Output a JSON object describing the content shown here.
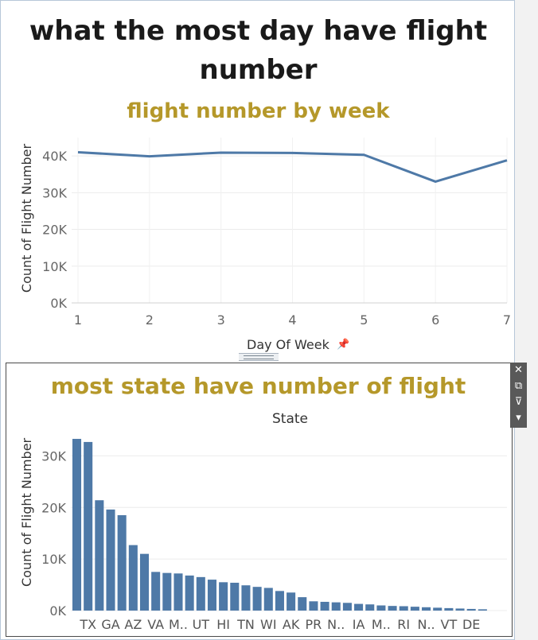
{
  "dashboard": {
    "title_line1": "what the most day have flight",
    "title_line2": "number"
  },
  "line_chart_title": "flight number by week",
  "bar_chart_title": "most state have number of flight",
  "bar_chart_column_header": "State",
  "toolbar": {
    "close_icon": "✕",
    "popout_icon": "⧉",
    "filter_icon": "⊽",
    "more_icon": "▾"
  },
  "chart_data": [
    {
      "type": "line",
      "title": "flight number by week",
      "xlabel": "Day Of Week",
      "ylabel": "Count of Flight Number",
      "x": [
        1,
        2,
        3,
        4,
        5,
        6,
        7
      ],
      "x_tick_labels": [
        "1",
        "2",
        "3",
        "4",
        "5",
        "6",
        "7"
      ],
      "series": [
        {
          "values": [
            41000,
            39900,
            40900,
            40800,
            40300,
            33000,
            38800
          ]
        }
      ],
      "ylim": [
        0,
        45000
      ],
      "y_ticks": [
        0,
        10000,
        20000,
        30000,
        40000
      ],
      "y_tick_labels": [
        "0K",
        "10K",
        "20K",
        "30K",
        "40K"
      ],
      "grid": true,
      "color": "#4e79a7"
    },
    {
      "type": "bar",
      "title": "most state have number of flight",
      "xlabel": "State",
      "ylabel": "Count of Flight Number",
      "categories": [
        "",
        "TX",
        "",
        "GA",
        "",
        "AZ",
        "",
        "VA",
        "",
        "M..",
        "",
        "UT",
        "",
        "HI",
        "",
        "TN",
        "",
        "WI",
        "",
        "AK",
        "",
        "PR",
        "",
        "N..",
        "",
        "IA",
        "",
        "M..",
        "",
        "RI",
        "",
        "N..",
        "",
        "VT",
        "",
        "DE",
        ""
      ],
      "values": [
        33300,
        32700,
        21400,
        19600,
        18500,
        12700,
        11000,
        7500,
        7300,
        7200,
        6800,
        6500,
        6000,
        5500,
        5400,
        4900,
        4600,
        4400,
        3800,
        3500,
        2600,
        1800,
        1700,
        1600,
        1500,
        1300,
        1200,
        1000,
        900,
        850,
        750,
        650,
        560,
        480,
        400,
        320,
        250
      ],
      "ylim": [
        0,
        35000
      ],
      "y_ticks": [
        0,
        10000,
        20000,
        30000
      ],
      "y_tick_labels": [
        "0K",
        "10K",
        "20K",
        "30K"
      ],
      "grid": true,
      "color": "#4e79a7"
    }
  ]
}
